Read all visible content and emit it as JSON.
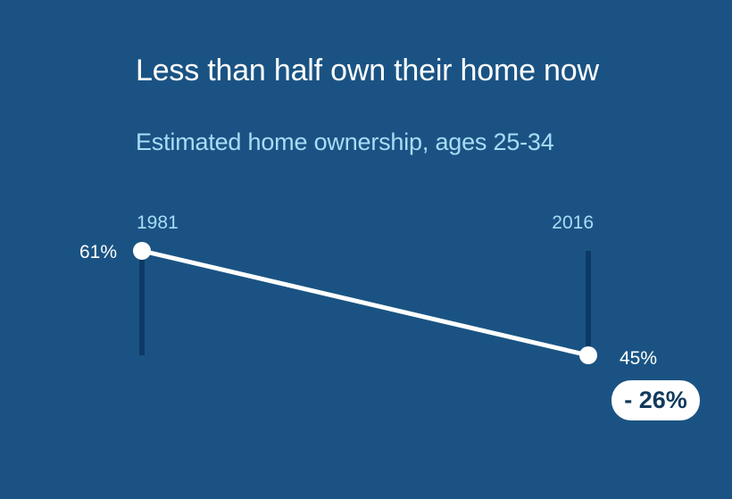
{
  "chart_data": {
    "type": "line",
    "title": "Less than half own their home now",
    "subtitle": "Estimated home ownership, ages 25-34",
    "x": [
      "1981",
      "2016"
    ],
    "series": [
      {
        "values": [
          61,
          45
        ],
        "labels": [
          "61%",
          "45%"
        ]
      }
    ],
    "change_label": "- 26%",
    "ylim": [
      45,
      61
    ],
    "grid": false,
    "colors": {
      "background": "#1a5383",
      "line": "#ffffff",
      "marker": "#ffffff",
      "stem": "#0c3a66",
      "year_label": "#a8dcf7",
      "value_label": "#ffffff",
      "badge_background": "#ffffff",
      "badge_text": "#113a5c"
    }
  }
}
